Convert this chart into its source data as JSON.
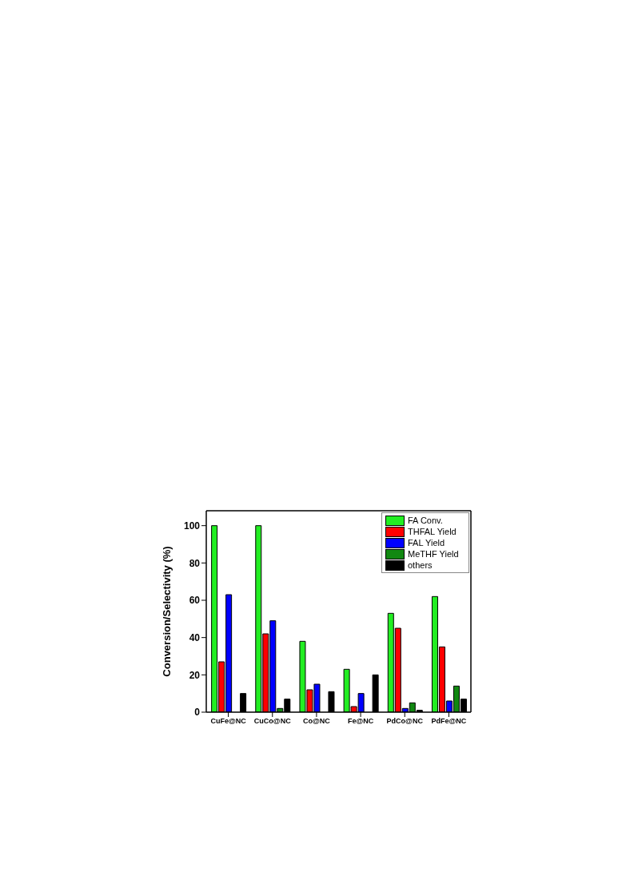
{
  "chart_data": {
    "type": "bar",
    "ylabel": "Conversion/Selectivity (%)",
    "categories": [
      "CuFe@NC",
      "CuCo@NC",
      "Co@NC",
      "Fe@NC",
      "PdCo@NC",
      "PdFe@NC"
    ],
    "series": [
      {
        "name": "FA Conv.",
        "color": "#22ee22",
        "values": [
          100,
          100,
          38,
          23,
          53,
          62
        ]
      },
      {
        "name": "THFAL Yield",
        "color": "#ff0000",
        "values": [
          27,
          42,
          12,
          3,
          45,
          35
        ]
      },
      {
        "name": "FAL Yield",
        "color": "#0000ff",
        "values": [
          63,
          49,
          15,
          10,
          2,
          6
        ]
      },
      {
        "name": "MeTHF Yield",
        "color": "#118811",
        "values": [
          0,
          2,
          0,
          0,
          5,
          14
        ]
      },
      {
        "name": "others",
        "color": "#000000",
        "values": [
          10,
          7,
          11,
          20,
          1,
          7
        ]
      }
    ],
    "ylim": [
      0,
      108
    ],
    "yticks": [
      0,
      20,
      40,
      60,
      80,
      100
    ],
    "grid": false,
    "legend": "top right"
  }
}
